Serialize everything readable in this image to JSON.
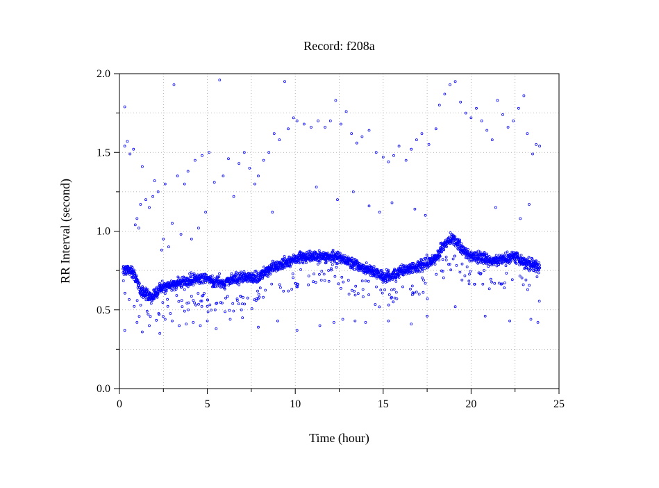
{
  "chart_data": {
    "type": "scatter",
    "title": "Record:  f208a",
    "xlabel": "Time (hour)",
    "ylabel": "RR Interval (second)",
    "xlim": [
      0,
      25
    ],
    "ylim": [
      0,
      2.0
    ],
    "x_ticks": [
      0,
      5,
      10,
      15,
      20,
      25
    ],
    "x_tick_labels": [
      "0",
      "5",
      "10",
      "15",
      "20",
      "25"
    ],
    "y_ticks": [
      0.0,
      0.5,
      1.0,
      1.5,
      2.0
    ],
    "y_tick_labels": [
      "0.0",
      "0.5",
      "1.0",
      "1.5",
      "2.0"
    ],
    "grid": true,
    "marker": "hollow-circle",
    "point_color": "#0000ff",
    "grid_color": "#a0a0a0",
    "series": [
      {
        "baseline": [
          [
            0.2,
            0.76
          ],
          [
            0.8,
            0.74
          ],
          [
            1.2,
            0.62
          ],
          [
            1.8,
            0.58
          ],
          [
            2.4,
            0.64
          ],
          [
            3.0,
            0.66
          ],
          [
            3.6,
            0.68
          ],
          [
            4.2,
            0.69
          ],
          [
            4.8,
            0.71
          ],
          [
            5.4,
            0.68
          ],
          [
            6.0,
            0.67
          ],
          [
            6.6,
            0.7
          ],
          [
            7.2,
            0.71
          ],
          [
            7.8,
            0.7
          ],
          [
            8.4,
            0.75
          ],
          [
            9.0,
            0.78
          ],
          [
            9.6,
            0.81
          ],
          [
            10.2,
            0.83
          ],
          [
            10.8,
            0.84
          ],
          [
            11.4,
            0.83
          ],
          [
            12.0,
            0.84
          ],
          [
            12.6,
            0.83
          ],
          [
            13.2,
            0.8
          ],
          [
            13.8,
            0.77
          ],
          [
            14.4,
            0.74
          ],
          [
            15.0,
            0.71
          ],
          [
            15.6,
            0.72
          ],
          [
            16.2,
            0.75
          ],
          [
            16.8,
            0.77
          ],
          [
            17.4,
            0.79
          ],
          [
            18.0,
            0.83
          ],
          [
            18.5,
            0.92
          ],
          [
            19.0,
            0.96
          ],
          [
            19.5,
            0.88
          ],
          [
            20.0,
            0.84
          ],
          [
            20.6,
            0.83
          ],
          [
            21.2,
            0.81
          ],
          [
            21.8,
            0.82
          ],
          [
            22.4,
            0.84
          ],
          [
            23.0,
            0.81
          ],
          [
            23.9,
            0.77
          ]
        ],
        "outliers": [
          [
            0.3,
            1.79
          ],
          [
            0.3,
            1.54
          ],
          [
            0.45,
            1.57
          ],
          [
            0.6,
            1.49
          ],
          [
            0.8,
            1.52
          ],
          [
            0.9,
            1.04
          ],
          [
            1.0,
            1.08
          ],
          [
            1.1,
            1.02
          ],
          [
            1.2,
            1.17
          ],
          [
            1.3,
            1.41
          ],
          [
            1.5,
            1.2
          ],
          [
            1.7,
            1.15
          ],
          [
            1.9,
            1.22
          ],
          [
            2.0,
            1.32
          ],
          [
            2.2,
            1.25
          ],
          [
            2.4,
            0.88
          ],
          [
            2.5,
            0.95
          ],
          [
            2.6,
            1.3
          ],
          [
            2.8,
            0.9
          ],
          [
            3.0,
            1.05
          ],
          [
            3.1,
            1.93
          ],
          [
            3.3,
            1.35
          ],
          [
            3.5,
            0.98
          ],
          [
            3.7,
            1.3
          ],
          [
            3.9,
            1.38
          ],
          [
            4.1,
            0.95
          ],
          [
            4.3,
            1.45
          ],
          [
            4.5,
            1.02
          ],
          [
            4.7,
            1.48
          ],
          [
            4.9,
            1.12
          ],
          [
            5.1,
            1.5
          ],
          [
            5.4,
            1.31
          ],
          [
            5.7,
            1.96
          ],
          [
            5.9,
            1.35
          ],
          [
            6.2,
            1.46
          ],
          [
            6.5,
            1.22
          ],
          [
            6.8,
            1.43
          ],
          [
            7.1,
            1.5
          ],
          [
            7.4,
            1.4
          ],
          [
            7.7,
            1.3
          ],
          [
            7.9,
            1.35
          ],
          [
            8.2,
            1.45
          ],
          [
            8.5,
            1.5
          ],
          [
            8.8,
            1.62
          ],
          [
            9.1,
            1.58
          ],
          [
            9.4,
            1.95
          ],
          [
            9.6,
            1.65
          ],
          [
            9.9,
            1.72
          ],
          [
            10.1,
            1.7
          ],
          [
            10.5,
            1.68
          ],
          [
            10.9,
            1.66
          ],
          [
            11.3,
            1.7
          ],
          [
            11.7,
            1.66
          ],
          [
            12.0,
            1.7
          ],
          [
            12.3,
            1.83
          ],
          [
            12.6,
            1.68
          ],
          [
            12.9,
            1.76
          ],
          [
            13.2,
            1.62
          ],
          [
            13.5,
            1.56
          ],
          [
            13.8,
            1.6
          ],
          [
            14.2,
            1.64
          ],
          [
            14.6,
            1.5
          ],
          [
            15.0,
            1.47
          ],
          [
            15.3,
            1.44
          ],
          [
            15.6,
            1.48
          ],
          [
            15.9,
            1.54
          ],
          [
            16.3,
            1.45
          ],
          [
            16.6,
            1.52
          ],
          [
            16.9,
            1.58
          ],
          [
            17.2,
            1.62
          ],
          [
            17.6,
            1.55
          ],
          [
            18.0,
            1.65
          ],
          [
            18.2,
            1.8
          ],
          [
            18.5,
            1.87
          ],
          [
            18.8,
            1.93
          ],
          [
            19.1,
            1.95
          ],
          [
            19.4,
            1.82
          ],
          [
            19.7,
            1.75
          ],
          [
            20.0,
            1.72
          ],
          [
            20.3,
            1.78
          ],
          [
            20.6,
            1.7
          ],
          [
            20.9,
            1.64
          ],
          [
            21.2,
            1.58
          ],
          [
            21.5,
            1.83
          ],
          [
            21.8,
            1.74
          ],
          [
            22.1,
            1.66
          ],
          [
            22.4,
            1.7
          ],
          [
            22.7,
            1.78
          ],
          [
            23.0,
            1.86
          ],
          [
            23.2,
            1.62
          ],
          [
            23.5,
            1.49
          ],
          [
            23.7,
            1.55
          ],
          [
            23.9,
            1.54
          ],
          [
            0.3,
            0.37
          ],
          [
            1.0,
            0.42
          ],
          [
            1.3,
            0.36
          ],
          [
            1.7,
            0.4
          ],
          [
            2.3,
            0.35
          ],
          [
            2.6,
            0.44
          ],
          [
            3.0,
            0.43
          ],
          [
            3.4,
            0.4
          ],
          [
            3.8,
            0.41
          ],
          [
            4.2,
            0.42
          ],
          [
            4.6,
            0.4
          ],
          [
            5.0,
            0.43
          ],
          [
            5.5,
            0.38
          ],
          [
            6.3,
            0.44
          ],
          [
            7.0,
            0.45
          ],
          [
            7.9,
            0.39
          ],
          [
            9.0,
            0.43
          ],
          [
            10.1,
            0.37
          ],
          [
            11.4,
            0.4
          ],
          [
            12.2,
            0.42
          ],
          [
            12.7,
            0.44
          ],
          [
            13.4,
            0.43
          ],
          [
            14.0,
            0.42
          ],
          [
            15.3,
            0.43
          ],
          [
            16.6,
            0.41
          ],
          [
            17.5,
            0.46
          ],
          [
            19.1,
            0.52
          ],
          [
            20.8,
            0.46
          ],
          [
            22.2,
            0.43
          ],
          [
            23.4,
            0.44
          ],
          [
            23.8,
            0.42
          ],
          [
            8.7,
            1.12
          ],
          [
            11.2,
            1.28
          ],
          [
            12.4,
            1.2
          ],
          [
            13.3,
            1.25
          ],
          [
            14.2,
            1.16
          ],
          [
            14.8,
            1.12
          ],
          [
            15.5,
            1.18
          ],
          [
            16.8,
            1.14
          ],
          [
            17.4,
            1.1
          ],
          [
            21.4,
            1.15
          ],
          [
            22.8,
            1.08
          ],
          [
            23.3,
            1.17
          ]
        ]
      }
    ]
  }
}
